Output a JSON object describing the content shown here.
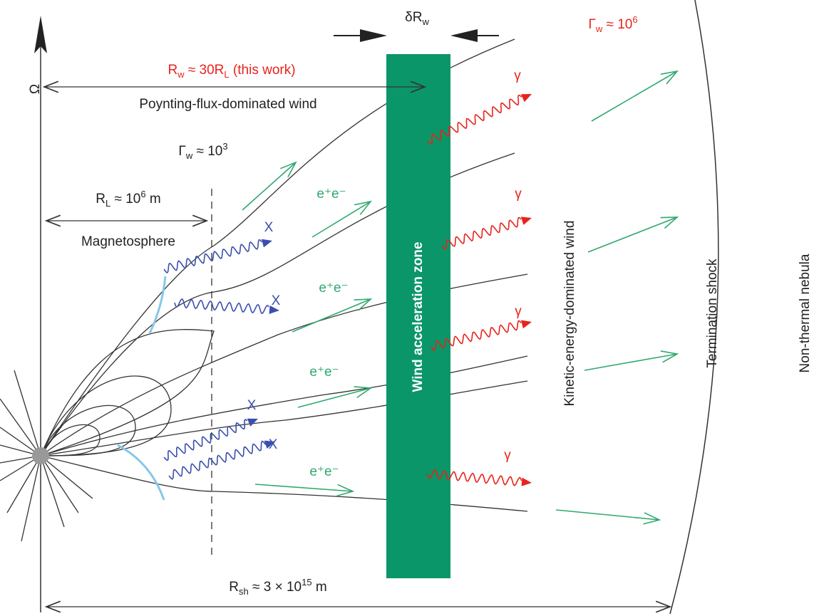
{
  "annotations": {
    "delta_rw": [
      {
        "t": "δR"
      },
      {
        "sub": "w"
      }
    ],
    "gamma_outer": [
      {
        "t": "Γ"
      },
      {
        "sub": "w"
      },
      {
        "t": " ≈ 10"
      },
      {
        "sup": "6"
      }
    ],
    "omega": "Ω",
    "rw": [
      {
        "t": "R"
      },
      {
        "sub": "w"
      },
      {
        "t": " ≈ 30R"
      },
      {
        "sub": "L"
      },
      {
        "t": " (this work)"
      }
    ],
    "poynting": "Poynting-flux-dominated wind",
    "gamma_inner": [
      {
        "t": "Γ"
      },
      {
        "sub": "w"
      },
      {
        "t": " ≈ 10"
      },
      {
        "sup": "3"
      }
    ],
    "rl": [
      {
        "t": "R"
      },
      {
        "sub": "L"
      },
      {
        "t": " ≈ 10"
      },
      {
        "sup": "6"
      },
      {
        "t": " m"
      }
    ],
    "magnetosphere": "Magnetosphere",
    "x_labels": [
      "X",
      "X",
      "X",
      "X"
    ],
    "pair_labels": [
      "e⁺e⁻",
      "e⁺e⁻",
      "e⁺e⁻",
      "e⁺e⁻"
    ],
    "gamma_labels": [
      "γ",
      "γ",
      "γ",
      "γ"
    ],
    "zone": "Wind acceleration zone",
    "kinetic": "Kinetic-energy-dominated wind",
    "shock": "Termination shock",
    "nebula": "Non-thermal nebula",
    "rsh": [
      {
        "t": "R"
      },
      {
        "sub": "sh"
      },
      {
        "t": " ≈ 3 × 10"
      },
      {
        "sup": "15"
      },
      {
        "t": " m"
      }
    ]
  }
}
